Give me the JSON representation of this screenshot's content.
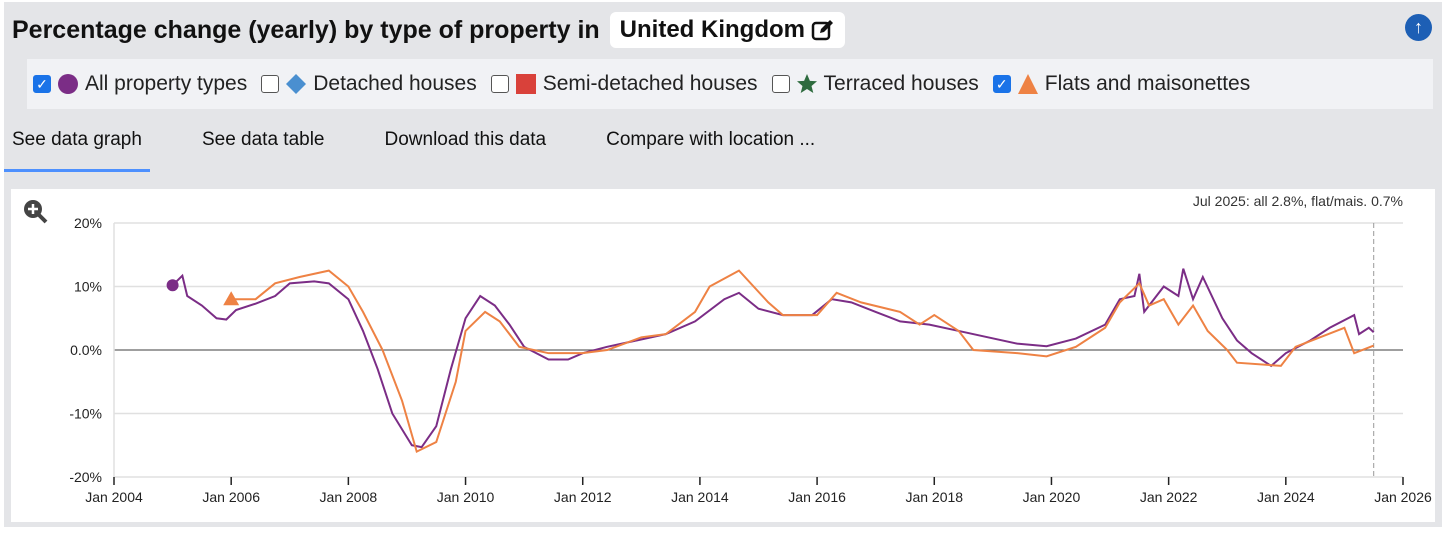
{
  "header": {
    "title": "Percentage change (yearly) by type of property in",
    "location": "United Kingdom",
    "edit_icon": "edit-icon",
    "scroll_top_icon": "arrow-up-circle-icon"
  },
  "legend": [
    {
      "label": "All property types",
      "checked": true,
      "marker": "circle",
      "color": "#7b2d86"
    },
    {
      "label": "Detached houses",
      "checked": false,
      "marker": "diamond",
      "color": "#4a8fd0"
    },
    {
      "label": "Semi-detached houses",
      "checked": false,
      "marker": "square",
      "color": "#d9413a"
    },
    {
      "label": "Terraced houses",
      "checked": false,
      "marker": "star",
      "color": "#2e6b3e"
    },
    {
      "label": "Flats and maisonettes",
      "checked": true,
      "marker": "triangle",
      "color": "#ee8244"
    }
  ],
  "tabs": [
    {
      "label": "See data graph",
      "active": true
    },
    {
      "label": "See data table"
    },
    {
      "label": "Download this data"
    },
    {
      "label": "Compare with location ..."
    }
  ],
  "chart_data": {
    "type": "line",
    "annotation": "Jul 2025: all 2.8%, flat/mais. 0.7%",
    "x_ticks": [
      "Jan 2004",
      "Jan 2006",
      "Jan 2008",
      "Jan 2010",
      "Jan 2012",
      "Jan 2014",
      "Jan 2016",
      "Jan 2018",
      "Jan 2020",
      "Jan 2022",
      "Jan 2024",
      "Jan 2026"
    ],
    "y_ticks": [
      "20%",
      "10%",
      "0.0%",
      "-10%",
      "-20%"
    ],
    "xlim": [
      "2004-01",
      "2026-01"
    ],
    "ylim": [
      -20,
      20
    ],
    "grid": true,
    "series": [
      {
        "name": "All property types",
        "color": "#7b2d86",
        "points": [
          [
            "2005-01",
            10.2
          ],
          [
            "2005-03",
            11.7
          ],
          [
            "2005-04",
            8.5
          ],
          [
            "2005-07",
            7
          ],
          [
            "2005-10",
            5
          ],
          [
            "2005-12",
            4.8
          ],
          [
            "2006-02",
            6.3
          ],
          [
            "2006-06",
            7.3
          ],
          [
            "2006-10",
            8.5
          ],
          [
            "2007-01",
            10.5
          ],
          [
            "2007-06",
            10.8
          ],
          [
            "2007-09",
            10.5
          ],
          [
            "2008-01",
            8
          ],
          [
            "2008-04",
            3
          ],
          [
            "2008-07",
            -3
          ],
          [
            "2008-10",
            -10
          ],
          [
            "2009-02",
            -15
          ],
          [
            "2009-04",
            -15.3
          ],
          [
            "2009-07",
            -12
          ],
          [
            "2009-10",
            -3
          ],
          [
            "2010-01",
            5
          ],
          [
            "2010-04",
            8.5
          ],
          [
            "2010-07",
            7
          ],
          [
            "2010-10",
            4
          ],
          [
            "2011-01",
            0.5
          ],
          [
            "2011-06",
            -1.5
          ],
          [
            "2011-10",
            -1.5
          ],
          [
            "2012-01",
            -0.5
          ],
          [
            "2012-06",
            0.5
          ],
          [
            "2012-12",
            1.5
          ],
          [
            "2013-06",
            2.5
          ],
          [
            "2013-12",
            4.5
          ],
          [
            "2014-06",
            8
          ],
          [
            "2014-09",
            9
          ],
          [
            "2015-01",
            6.5
          ],
          [
            "2015-06",
            5.5
          ],
          [
            "2015-12",
            5.5
          ],
          [
            "2016-04",
            8
          ],
          [
            "2016-08",
            7.5
          ],
          [
            "2017-01",
            6
          ],
          [
            "2017-06",
            4.5
          ],
          [
            "2017-12",
            4
          ],
          [
            "2018-06",
            3
          ],
          [
            "2018-12",
            2
          ],
          [
            "2019-06",
            1
          ],
          [
            "2019-12",
            0.6
          ],
          [
            "2020-06",
            1.8
          ],
          [
            "2020-12",
            4
          ],
          [
            "2021-03",
            8
          ],
          [
            "2021-06",
            8.5
          ],
          [
            "2021-07",
            12
          ],
          [
            "2021-08",
            6
          ],
          [
            "2021-12",
            10
          ],
          [
            "2022-03",
            8.5
          ],
          [
            "2022-04",
            12.8
          ],
          [
            "2022-06",
            8
          ],
          [
            "2022-08",
            11.5
          ],
          [
            "2022-12",
            5
          ],
          [
            "2023-03",
            1.5
          ],
          [
            "2023-06",
            -0.5
          ],
          [
            "2023-10",
            -2.5
          ],
          [
            "2024-01",
            -0.5
          ],
          [
            "2024-06",
            1.5
          ],
          [
            "2024-10",
            3.5
          ],
          [
            "2025-03",
            5.5
          ],
          [
            "2025-04",
            2.5
          ],
          [
            "2025-06",
            3.5
          ],
          [
            "2025-07",
            2.8
          ]
        ]
      },
      {
        "name": "Flats and maisonettes",
        "color": "#ee8244",
        "points": [
          [
            "2006-01",
            8
          ],
          [
            "2006-06",
            8
          ],
          [
            "2006-10",
            10.5
          ],
          [
            "2007-03",
            11.5
          ],
          [
            "2007-09",
            12.5
          ],
          [
            "2008-01",
            10
          ],
          [
            "2008-04",
            6
          ],
          [
            "2008-08",
            0
          ],
          [
            "2008-12",
            -8
          ],
          [
            "2009-03",
            -16
          ],
          [
            "2009-07",
            -14.5
          ],
          [
            "2009-11",
            -5
          ],
          [
            "2010-01",
            3
          ],
          [
            "2010-05",
            6
          ],
          [
            "2010-08",
            4.5
          ],
          [
            "2010-12",
            0.5
          ],
          [
            "2011-06",
            -0.5
          ],
          [
            "2012-01",
            -0.5
          ],
          [
            "2012-06",
            0
          ],
          [
            "2013-01",
            2
          ],
          [
            "2013-06",
            2.5
          ],
          [
            "2013-12",
            6
          ],
          [
            "2014-03",
            10
          ],
          [
            "2014-09",
            12.5
          ],
          [
            "2015-03",
            7.5
          ],
          [
            "2015-06",
            5.5
          ],
          [
            "2016-01",
            5.5
          ],
          [
            "2016-05",
            9
          ],
          [
            "2016-10",
            7.5
          ],
          [
            "2017-06",
            6
          ],
          [
            "2017-10",
            4
          ],
          [
            "2018-01",
            5.5
          ],
          [
            "2018-06",
            3
          ],
          [
            "2018-09",
            0
          ],
          [
            "2019-06",
            -0.5
          ],
          [
            "2019-12",
            -1
          ],
          [
            "2020-06",
            0.5
          ],
          [
            "2020-12",
            3.5
          ],
          [
            "2021-03",
            7.5
          ],
          [
            "2021-07",
            10.5
          ],
          [
            "2021-09",
            7
          ],
          [
            "2021-12",
            8
          ],
          [
            "2022-03",
            4
          ],
          [
            "2022-06",
            7
          ],
          [
            "2022-09",
            3
          ],
          [
            "2023-01",
            0
          ],
          [
            "2023-03",
            -2
          ],
          [
            "2023-12",
            -2.5
          ],
          [
            "2024-03",
            0.5
          ],
          [
            "2024-08",
            2
          ],
          [
            "2025-01",
            3.5
          ],
          [
            "2025-03",
            -0.5
          ],
          [
            "2025-07",
            0.7
          ]
        ]
      }
    ]
  }
}
